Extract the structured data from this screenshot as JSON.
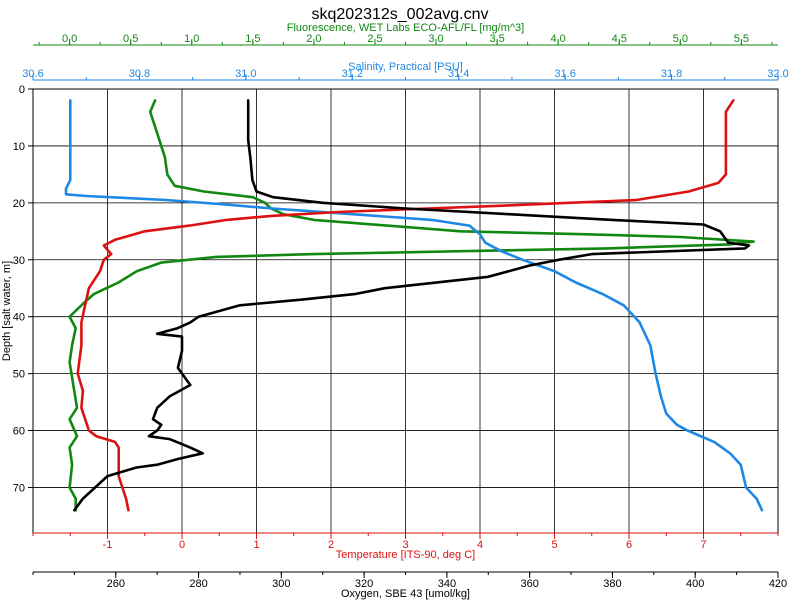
{
  "chart_data": {
    "type": "line",
    "title": "skq202312s_002avg.cnv",
    "grid": true,
    "legend": "none",
    "y_axis": {
      "label": "Depth [salt water, m]",
      "range": [
        0,
        78
      ],
      "ticks": [
        0,
        10,
        20,
        30,
        40,
        50,
        60,
        70
      ],
      "inverted": true
    },
    "x_axes": [
      {
        "id": "fluorescence",
        "label": "Fluorescence, WET Labs ECO-AFL/FL [mg/m^3]",
        "position": "top-1",
        "color": "#118811",
        "range": [
          -0.3,
          5.8
        ],
        "ticks": [
          0.0,
          0.5,
          1.0,
          1.5,
          2.0,
          2.5,
          3.0,
          3.5,
          4.0,
          4.5,
          5.0,
          5.5
        ],
        "tick_labels": [
          "0.0",
          "0.5",
          "1.0",
          "1.5",
          "2.0",
          "2.5",
          "3.0",
          "3.5",
          "4.0",
          "4.5",
          "5.0",
          "5.5"
        ]
      },
      {
        "id": "salinity",
        "label": "Salinity, Practical [PSU]",
        "position": "top-2",
        "color": "#1e88e5",
        "range": [
          30.6,
          32.0
        ],
        "ticks": [
          30.6,
          30.8,
          31.0,
          31.2,
          31.4,
          31.6,
          31.8,
          32.0
        ],
        "tick_labels": [
          "30.6",
          "30.8",
          "31.0",
          "31.2",
          "31.4",
          "31.6",
          "31.8",
          "32.0"
        ]
      },
      {
        "id": "temperature",
        "label": "Temperature [ITS-90, deg C]",
        "position": "bottom-1",
        "color": "#dd1111",
        "range": [
          -2.0,
          8.0
        ],
        "ticks": [
          -1,
          0,
          1,
          2,
          3,
          4,
          5,
          6,
          7
        ],
        "tick_labels": [
          "-1",
          "0",
          "1",
          "2",
          "3",
          "4",
          "5",
          "6",
          "7"
        ]
      },
      {
        "id": "oxygen",
        "label": "Oxygen, SBE 43 [umol/kg]",
        "position": "bottom-2",
        "color": "#000000",
        "range": [
          240,
          420
        ],
        "ticks": [
          260,
          280,
          300,
          320,
          340,
          360,
          380,
          400,
          420
        ],
        "tick_labels": [
          "260",
          "280",
          "300",
          "320",
          "340",
          "360",
          "380",
          "400",
          "420"
        ]
      }
    ],
    "series": [
      {
        "axis": "fluorescence",
        "color": "#118811",
        "points": [
          [
            0.7,
            2
          ],
          [
            0.66,
            4
          ],
          [
            0.72,
            8
          ],
          [
            0.78,
            12
          ],
          [
            0.8,
            15
          ],
          [
            0.86,
            17
          ],
          [
            1.1,
            18
          ],
          [
            1.5,
            19
          ],
          [
            1.6,
            20
          ],
          [
            1.65,
            21
          ],
          [
            1.75,
            22
          ],
          [
            2.0,
            23
          ],
          [
            2.6,
            24
          ],
          [
            3.2,
            25
          ],
          [
            4.2,
            25.5
          ],
          [
            5.0,
            26
          ],
          [
            5.6,
            26.8
          ],
          [
            5.4,
            27.3
          ],
          [
            4.4,
            28
          ],
          [
            3.2,
            28.5
          ],
          [
            2.0,
            29
          ],
          [
            1.2,
            29.5
          ],
          [
            0.75,
            30.5
          ],
          [
            0.55,
            32
          ],
          [
            0.4,
            34
          ],
          [
            0.3,
            35
          ],
          [
            0.2,
            36
          ],
          [
            0.12,
            37.5
          ],
          [
            0.0,
            40
          ],
          [
            0.05,
            42
          ],
          [
            0.02,
            45
          ],
          [
            0.0,
            48
          ],
          [
            0.03,
            52
          ],
          [
            0.06,
            56
          ],
          [
            0.0,
            58
          ],
          [
            0.06,
            61
          ],
          [
            0.0,
            63
          ],
          [
            0.02,
            66
          ],
          [
            0.0,
            70
          ],
          [
            0.05,
            72
          ],
          [
            0.05,
            74
          ]
        ]
      },
      {
        "axis": "salinity",
        "color": "#1e88e5",
        "points": [
          [
            30.67,
            2
          ],
          [
            30.67,
            10
          ],
          [
            30.67,
            16
          ],
          [
            30.662,
            17.5
          ],
          [
            30.662,
            18.5
          ],
          [
            30.7,
            18.8
          ],
          [
            30.85,
            19.5
          ],
          [
            30.95,
            20.2
          ],
          [
            31.05,
            21
          ],
          [
            31.2,
            22
          ],
          [
            31.35,
            23
          ],
          [
            31.42,
            24
          ],
          [
            31.44,
            25.5
          ],
          [
            31.45,
            27
          ],
          [
            31.48,
            28.5
          ],
          [
            31.52,
            30
          ],
          [
            31.58,
            32
          ],
          [
            31.62,
            34
          ],
          [
            31.67,
            36
          ],
          [
            31.71,
            38
          ],
          [
            31.74,
            41
          ],
          [
            31.76,
            45
          ],
          [
            31.77,
            50
          ],
          [
            31.78,
            54
          ],
          [
            31.79,
            57
          ],
          [
            31.81,
            59
          ],
          [
            31.83,
            60
          ],
          [
            31.88,
            62
          ],
          [
            31.91,
            64
          ],
          [
            31.93,
            66
          ],
          [
            31.935,
            68
          ],
          [
            31.94,
            70
          ],
          [
            31.96,
            72
          ],
          [
            31.97,
            74
          ]
        ]
      },
      {
        "axis": "temperature",
        "color": "#dd1111",
        "points": [
          [
            7.4,
            2
          ],
          [
            7.3,
            4
          ],
          [
            7.3,
            10
          ],
          [
            7.3,
            15
          ],
          [
            7.2,
            16.5
          ],
          [
            6.8,
            18
          ],
          [
            6.1,
            19.5
          ],
          [
            5.2,
            20
          ],
          [
            4.3,
            20.5
          ],
          [
            3.3,
            21
          ],
          [
            2.1,
            21.6
          ],
          [
            1.2,
            22.3
          ],
          [
            0.6,
            23
          ],
          [
            0.1,
            24
          ],
          [
            -0.5,
            25
          ],
          [
            -0.9,
            26.5
          ],
          [
            -1.05,
            27.5
          ],
          [
            -0.95,
            29
          ],
          [
            -1.05,
            30
          ],
          [
            -1.1,
            32
          ],
          [
            -1.25,
            35
          ],
          [
            -1.3,
            38
          ],
          [
            -1.35,
            41
          ],
          [
            -1.35,
            45
          ],
          [
            -1.38,
            48
          ],
          [
            -1.4,
            50
          ],
          [
            -1.33,
            53
          ],
          [
            -1.35,
            56
          ],
          [
            -1.25,
            60
          ],
          [
            -1.15,
            61
          ],
          [
            -0.9,
            62
          ],
          [
            -0.85,
            63
          ],
          [
            -0.85,
            66
          ],
          [
            -0.85,
            68
          ],
          [
            -0.8,
            70
          ],
          [
            -0.75,
            72
          ],
          [
            -0.72,
            74
          ]
        ]
      },
      {
        "axis": "oxygen",
        "color": "#000000",
        "points": [
          [
            292,
            2
          ],
          [
            292,
            5
          ],
          [
            292,
            9
          ],
          [
            292.5,
            12
          ],
          [
            293,
            16
          ],
          [
            294,
            18
          ],
          [
            298,
            19
          ],
          [
            310,
            20
          ],
          [
            330,
            21
          ],
          [
            355,
            22
          ],
          [
            380,
            23
          ],
          [
            402,
            23.8
          ],
          [
            406,
            25
          ],
          [
            408,
            27
          ],
          [
            413,
            27.5
          ],
          [
            412,
            28
          ],
          [
            375,
            29
          ],
          [
            367,
            30
          ],
          [
            360,
            31
          ],
          [
            350,
            33
          ],
          [
            325,
            35
          ],
          [
            318,
            36
          ],
          [
            305,
            37
          ],
          [
            290,
            38
          ],
          [
            280,
            40
          ],
          [
            278,
            41
          ],
          [
            275,
            42
          ],
          [
            270,
            43
          ],
          [
            276,
            43.5
          ],
          [
            276,
            46
          ],
          [
            275,
            49
          ],
          [
            277,
            51
          ],
          [
            278,
            52
          ],
          [
            273,
            54
          ],
          [
            270,
            56
          ],
          [
            269,
            58
          ],
          [
            271,
            59
          ],
          [
            270,
            60
          ],
          [
            268,
            61
          ],
          [
            273,
            61.5
          ],
          [
            278,
            63
          ],
          [
            281,
            64
          ],
          [
            275,
            65
          ],
          [
            270,
            66
          ],
          [
            265,
            66.5
          ],
          [
            258,
            68
          ],
          [
            255,
            70
          ],
          [
            252,
            72
          ],
          [
            250,
            74
          ]
        ]
      }
    ]
  }
}
